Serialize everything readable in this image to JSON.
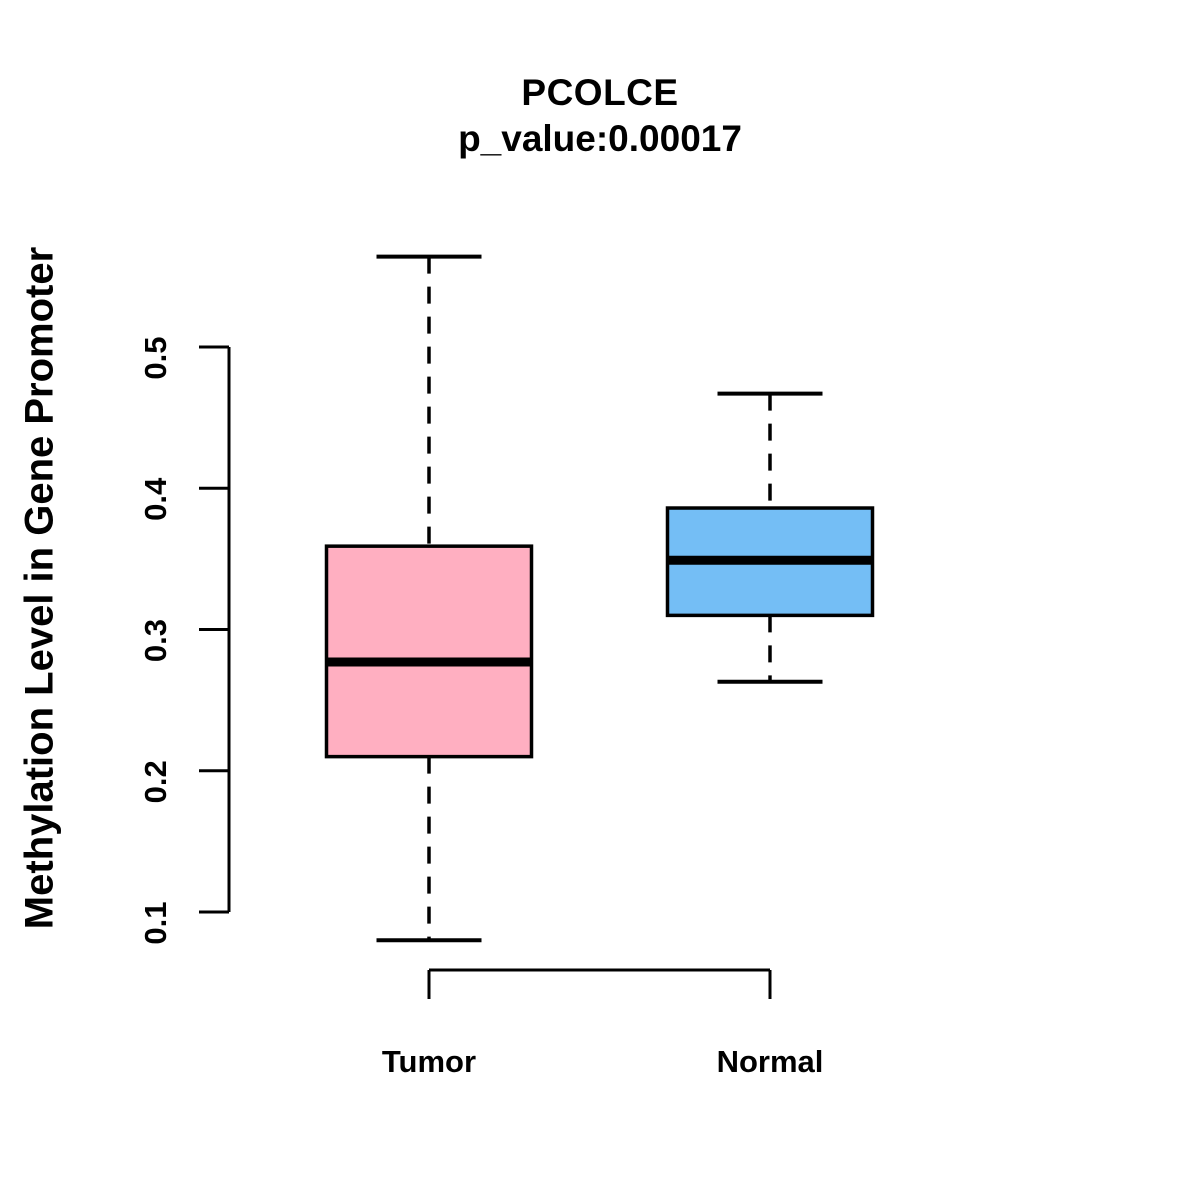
{
  "figure": {
    "title": "PCOLCE",
    "subtitle": "p_value:0.00017",
    "y_axis_label": "Methylation Level in Gene Promoter"
  },
  "chart_data": {
    "type": "boxplot",
    "title": "PCOLCE",
    "subtitle": "p_value:0.00017",
    "ylabel": "Methylation Level in Gene Promoter",
    "xlabel": "",
    "categories": [
      "Tumor",
      "Normal"
    ],
    "series": [
      {
        "name": "Tumor",
        "fill_color": "#FFAFC1",
        "whisker_low": 0.08,
        "q1": 0.21,
        "median": 0.277,
        "q3": 0.359,
        "whisker_high": 0.564
      },
      {
        "name": "Normal",
        "fill_color": "#74BEF5",
        "whisker_low": 0.263,
        "q1": 0.31,
        "median": 0.349,
        "q3": 0.386,
        "whisker_high": 0.467
      }
    ],
    "yticks": [
      0.1,
      0.2,
      0.3,
      0.4,
      0.5
    ],
    "ylim": [
      0.06,
      0.58
    ],
    "grid": false,
    "legend": null,
    "stroke_color": "#000000",
    "background_color": "#FFFFFF"
  }
}
